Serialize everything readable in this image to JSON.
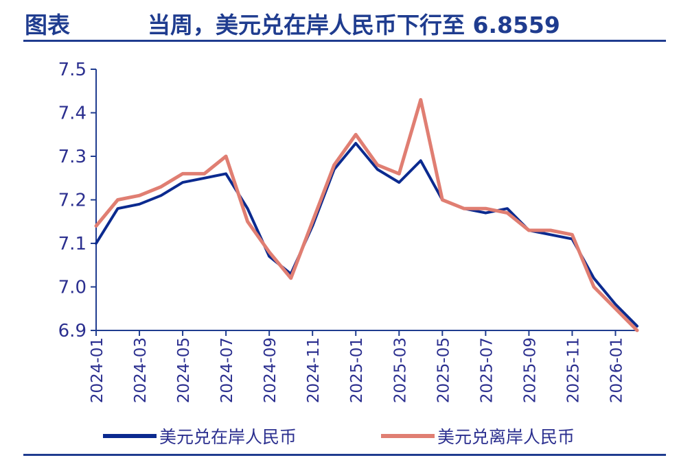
{
  "header": {
    "label": "图表",
    "title": "当周，美元兑在岸人民币下行至 6.8559"
  },
  "colors": {
    "header": "#1f3c8f",
    "onshore": "#0b2a8f",
    "offshore": "#e07e72",
    "axis": "#1f3c8f",
    "tick_text": "#2b2f8f"
  },
  "chart_data": {
    "type": "line",
    "title": "当周，美元兑在岸人民币下行至 6.8559",
    "xlabel": "",
    "ylabel": "",
    "ylim": [
      6.9,
      7.5
    ],
    "yticks": [
      6.9,
      7.0,
      7.1,
      7.2,
      7.3,
      7.4,
      7.5
    ],
    "xlim": [
      "2024-01",
      "2026-02"
    ],
    "xticks": [
      "2024-01",
      "2024-03",
      "2024-05",
      "2024-07",
      "2024-09",
      "2024-11",
      "2025-01",
      "2025-03",
      "2025-05",
      "2025-07",
      "2025-09",
      "2025-11",
      "2026-01"
    ],
    "grid": false,
    "legend_position": "bottom",
    "x": [
      "2024-01",
      "2024-02",
      "2024-03",
      "2024-04",
      "2024-05",
      "2024-06",
      "2024-07",
      "2024-08",
      "2024-09",
      "2024-10",
      "2024-11",
      "2024-12",
      "2025-01",
      "2025-02",
      "2025-03",
      "2025-04",
      "2025-05",
      "2025-06",
      "2025-07",
      "2025-08",
      "2025-09",
      "2025-10",
      "2025-11",
      "2025-12",
      "2026-01",
      "2026-02"
    ],
    "series": [
      {
        "name": "美元兑在岸人民币",
        "values": [
          7.1,
          7.18,
          7.19,
          7.21,
          7.24,
          7.25,
          7.26,
          7.18,
          7.07,
          7.03,
          7.14,
          7.27,
          7.33,
          7.27,
          7.24,
          7.29,
          7.2,
          7.18,
          7.17,
          7.18,
          7.13,
          7.12,
          7.11,
          7.02,
          6.96,
          6.91
        ]
      },
      {
        "name": "美元兑离岸人民币",
        "values": [
          7.14,
          7.2,
          7.21,
          7.23,
          7.26,
          7.26,
          7.3,
          7.15,
          7.08,
          7.02,
          7.15,
          7.28,
          7.35,
          7.28,
          7.26,
          7.43,
          7.2,
          7.18,
          7.18,
          7.17,
          7.13,
          7.13,
          7.12,
          7.0,
          6.95,
          6.9
        ]
      }
    ]
  }
}
